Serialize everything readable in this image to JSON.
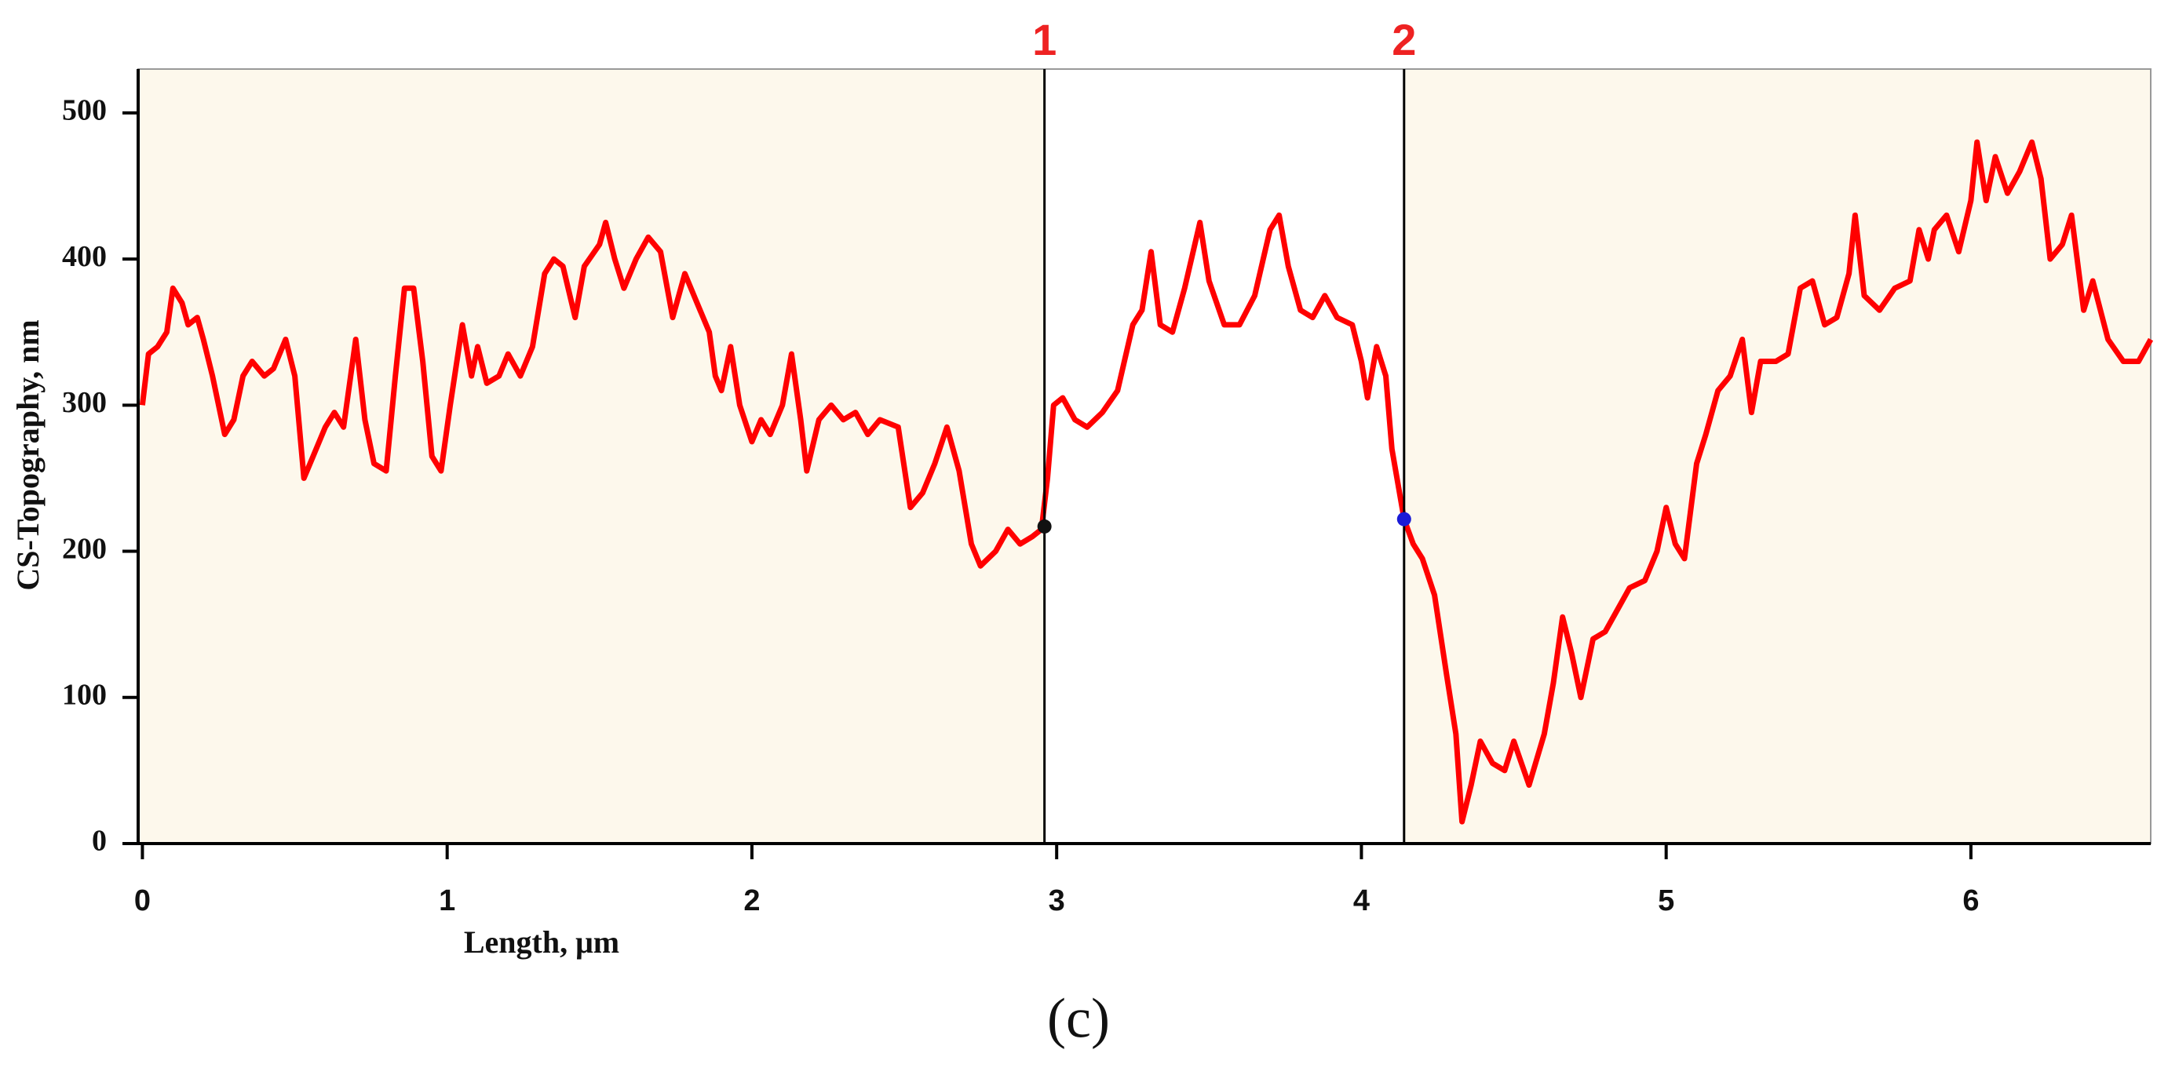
{
  "chart_data": {
    "type": "line",
    "x_label": "Length, μm",
    "y_label": "CS-Topography, nm",
    "caption": "(c)",
    "xlim": [
      -0.014,
      6.59
    ],
    "ylim": [
      0,
      530
    ],
    "xticks": [
      0,
      1,
      2,
      3,
      4,
      5,
      6
    ],
    "yticks": [
      0,
      100,
      200,
      300,
      400,
      500
    ],
    "shade_color": "#fdf8ec",
    "cursors": [
      {
        "label": "1",
        "x": 2.96,
        "y": 217,
        "color": "#111111"
      },
      {
        "label": "2",
        "x": 4.14,
        "y": 222,
        "color": "#1a1ad6"
      }
    ],
    "series": [
      {
        "color": "#ff0000",
        "x": [
          0,
          0.02,
          0.05,
          0.08,
          0.1,
          0.13,
          0.15,
          0.18,
          0.2,
          0.23,
          0.27,
          0.3,
          0.33,
          0.36,
          0.4,
          0.43,
          0.47,
          0.5,
          0.53,
          0.56,
          0.6,
          0.63,
          0.66,
          0.7,
          0.73,
          0.76,
          0.8,
          0.83,
          0.86,
          0.89,
          0.92,
          0.95,
          0.98,
          1.01,
          1.05,
          1.08,
          1.1,
          1.13,
          1.17,
          1.2,
          1.24,
          1.28,
          1.32,
          1.35,
          1.38,
          1.42,
          1.45,
          1.5,
          1.52,
          1.55,
          1.58,
          1.62,
          1.66,
          1.7,
          1.74,
          1.78,
          1.82,
          1.86,
          1.88,
          1.9,
          1.93,
          1.96,
          2.0,
          2.03,
          2.06,
          2.1,
          2.13,
          2.16,
          2.18,
          2.22,
          2.26,
          2.3,
          2.34,
          2.38,
          2.42,
          2.48,
          2.52,
          2.56,
          2.6,
          2.64,
          2.68,
          2.72,
          2.75,
          2.8,
          2.84,
          2.88,
          2.92,
          2.95,
          2.97,
          2.99,
          3.02,
          3.06,
          3.1,
          3.15,
          3.2,
          3.25,
          3.28,
          3.31,
          3.34,
          3.38,
          3.42,
          3.47,
          3.5,
          3.55,
          3.6,
          3.65,
          3.7,
          3.73,
          3.76,
          3.8,
          3.84,
          3.88,
          3.92,
          3.97,
          4.0,
          4.02,
          4.05,
          4.08,
          4.1,
          4.14,
          4.17,
          4.2,
          4.24,
          4.28,
          4.31,
          4.33,
          4.36,
          4.39,
          4.43,
          4.47,
          4.5,
          4.55,
          4.6,
          4.63,
          4.66,
          4.69,
          4.72,
          4.76,
          4.8,
          4.84,
          4.88,
          4.93,
          4.97,
          5.0,
          5.03,
          5.06,
          5.1,
          5.13,
          5.17,
          5.21,
          5.25,
          5.28,
          5.31,
          5.36,
          5.4,
          5.44,
          5.48,
          5.52,
          5.56,
          5.6,
          5.62,
          5.65,
          5.7,
          5.75,
          5.8,
          5.83,
          5.86,
          5.88,
          5.92,
          5.96,
          6.0,
          6.02,
          6.05,
          6.08,
          6.12,
          6.16,
          6.2,
          6.23,
          6.26,
          6.3,
          6.33,
          6.37,
          6.4,
          6.45,
          6.5,
          6.55,
          6.59
        ],
        "values": [
          300,
          335,
          340,
          350,
          380,
          370,
          355,
          360,
          345,
          320,
          280,
          290,
          320,
          330,
          320,
          325,
          345,
          320,
          250,
          265,
          285,
          295,
          285,
          345,
          290,
          260,
          255,
          320,
          380,
          380,
          330,
          265,
          255,
          300,
          355,
          320,
          340,
          315,
          320,
          335,
          320,
          340,
          390,
          400,
          395,
          360,
          395,
          410,
          425,
          400,
          380,
          400,
          415,
          405,
          360,
          390,
          370,
          350,
          320,
          310,
          340,
          300,
          275,
          290,
          280,
          300,
          335,
          290,
          255,
          290,
          300,
          290,
          295,
          280,
          290,
          285,
          230,
          240,
          260,
          285,
          255,
          205,
          190,
          200,
          215,
          205,
          210,
          215,
          250,
          300,
          305,
          290,
          285,
          295,
          310,
          355,
          365,
          405,
          355,
          350,
          380,
          425,
          385,
          355,
          355,
          375,
          420,
          430,
          395,
          365,
          360,
          375,
          360,
          355,
          330,
          305,
          340,
          320,
          270,
          222,
          205,
          195,
          170,
          115,
          75,
          15,
          40,
          70,
          55,
          50,
          70,
          40,
          75,
          110,
          155,
          130,
          100,
          140,
          145,
          160,
          175,
          180,
          200,
          230,
          205,
          195,
          260,
          280,
          310,
          320,
          345,
          295,
          330,
          330,
          335,
          380,
          385,
          355,
          360,
          390,
          430,
          375,
          365,
          380,
          385,
          420,
          400,
          420,
          430,
          405,
          440,
          480,
          440,
          470,
          445,
          460,
          480,
          455,
          400,
          410,
          430,
          365,
          385,
          345,
          330,
          330,
          345
        ]
      }
    ]
  }
}
